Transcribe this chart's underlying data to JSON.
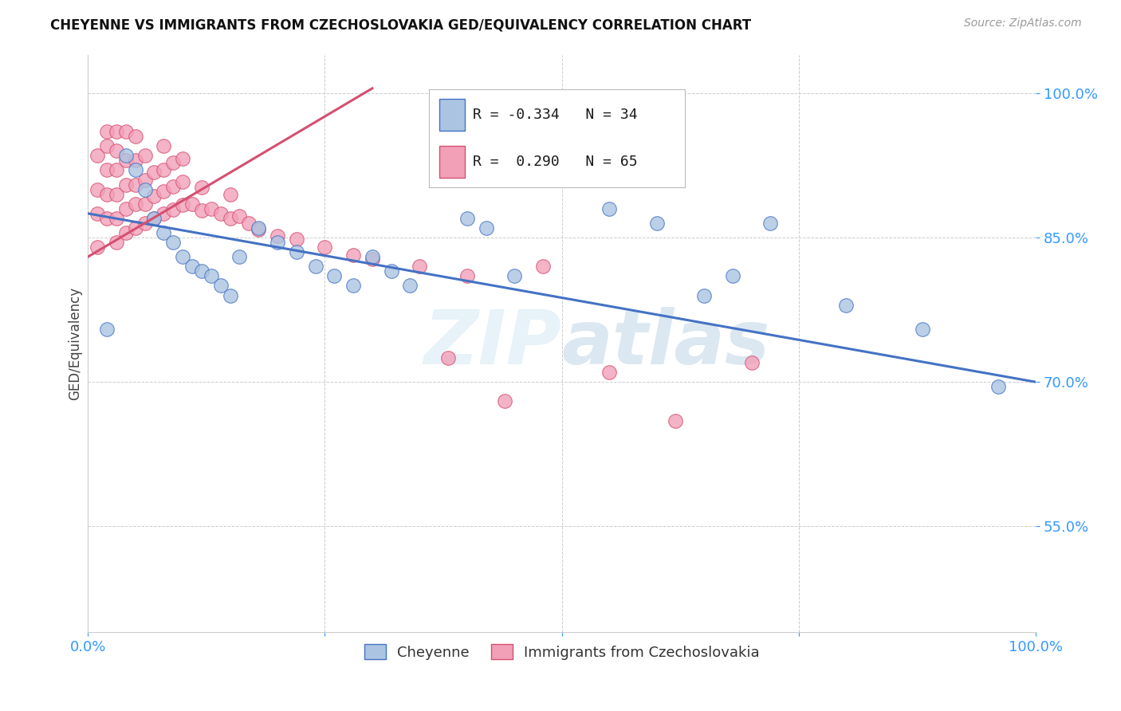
{
  "title": "CHEYENNE VS IMMIGRANTS FROM CZECHOSLOVAKIA GED/EQUIVALENCY CORRELATION CHART",
  "source": "Source: ZipAtlas.com",
  "ylabel": "GED/Equivalency",
  "xlim": [
    0.0,
    1.0
  ],
  "ylim": [
    0.44,
    1.04
  ],
  "yticks": [
    0.55,
    0.7,
    0.85,
    1.0
  ],
  "ytick_labels": [
    "55.0%",
    "70.0%",
    "85.0%",
    "100.0%"
  ],
  "xticks": [
    0.0,
    0.25,
    0.5,
    0.75,
    1.0
  ],
  "xtick_labels": [
    "0.0%",
    "",
    "",
    "",
    "100.0%"
  ],
  "blue_color": "#aac4e2",
  "pink_color": "#f2a0b8",
  "blue_line_color": "#4472c4",
  "pink_line_color": "#d45070",
  "cheyenne_x": [
    0.02,
    0.04,
    0.05,
    0.06,
    0.07,
    0.08,
    0.09,
    0.1,
    0.11,
    0.12,
    0.13,
    0.14,
    0.15,
    0.16,
    0.18,
    0.2,
    0.22,
    0.24,
    0.26,
    0.28,
    0.3,
    0.32,
    0.34,
    0.4,
    0.42,
    0.45,
    0.55,
    0.6,
    0.65,
    0.68,
    0.72,
    0.8,
    0.88,
    0.96
  ],
  "cheyenne_y": [
    0.755,
    0.935,
    0.92,
    0.9,
    0.87,
    0.855,
    0.845,
    0.83,
    0.82,
    0.815,
    0.81,
    0.8,
    0.79,
    0.83,
    0.86,
    0.845,
    0.835,
    0.82,
    0.81,
    0.8,
    0.83,
    0.815,
    0.8,
    0.87,
    0.86,
    0.81,
    0.88,
    0.865,
    0.79,
    0.81,
    0.865,
    0.78,
    0.755,
    0.695
  ],
  "immig_x": [
    0.01,
    0.01,
    0.01,
    0.01,
    0.02,
    0.02,
    0.02,
    0.02,
    0.02,
    0.03,
    0.03,
    0.03,
    0.03,
    0.03,
    0.03,
    0.04,
    0.04,
    0.04,
    0.04,
    0.04,
    0.05,
    0.05,
    0.05,
    0.05,
    0.05,
    0.06,
    0.06,
    0.06,
    0.06,
    0.07,
    0.07,
    0.07,
    0.08,
    0.08,
    0.08,
    0.08,
    0.09,
    0.09,
    0.09,
    0.1,
    0.1,
    0.1,
    0.11,
    0.12,
    0.12,
    0.13,
    0.14,
    0.15,
    0.15,
    0.16,
    0.17,
    0.18,
    0.2,
    0.22,
    0.25,
    0.28,
    0.3,
    0.35,
    0.38,
    0.4,
    0.44,
    0.48,
    0.55,
    0.62,
    0.7
  ],
  "immig_y": [
    0.84,
    0.875,
    0.9,
    0.935,
    0.87,
    0.895,
    0.92,
    0.945,
    0.96,
    0.845,
    0.87,
    0.895,
    0.92,
    0.94,
    0.96,
    0.855,
    0.88,
    0.905,
    0.93,
    0.96,
    0.86,
    0.885,
    0.905,
    0.93,
    0.955,
    0.865,
    0.885,
    0.91,
    0.935,
    0.87,
    0.893,
    0.918,
    0.875,
    0.898,
    0.92,
    0.945,
    0.879,
    0.903,
    0.928,
    0.884,
    0.908,
    0.932,
    0.885,
    0.878,
    0.902,
    0.88,
    0.875,
    0.87,
    0.895,
    0.872,
    0.865,
    0.858,
    0.852,
    0.848,
    0.84,
    0.832,
    0.828,
    0.82,
    0.725,
    0.81,
    0.68,
    0.82,
    0.71,
    0.66,
    0.72
  ],
  "blue_trend_x": [
    0.0,
    1.0
  ],
  "blue_trend_y": [
    0.875,
    0.7
  ],
  "pink_trend_x": [
    0.0,
    0.3
  ],
  "pink_trend_y": [
    0.83,
    1.005
  ],
  "watermark_zip": "ZIP",
  "watermark_atlas": "atlas",
  "background_color": "#ffffff",
  "grid_color": "#cccccc"
}
